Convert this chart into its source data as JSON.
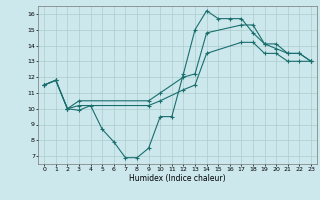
{
  "title": "",
  "xlabel": "Humidex (Indice chaleur)",
  "bg_color": "#cce8ec",
  "grid_color": "#aacccc",
  "line_color": "#1a6e6e",
  "xlim": [
    -0.5,
    23.5
  ],
  "ylim": [
    6.5,
    16.5
  ],
  "xticks": [
    0,
    1,
    2,
    3,
    4,
    5,
    6,
    7,
    8,
    9,
    10,
    11,
    12,
    13,
    14,
    15,
    16,
    17,
    18,
    19,
    20,
    21,
    22,
    23
  ],
  "yticks": [
    7,
    8,
    9,
    10,
    11,
    12,
    13,
    14,
    15,
    16
  ],
  "series1_x": [
    0,
    1,
    2,
    3,
    4,
    5,
    6,
    7,
    8,
    9,
    10,
    11,
    12,
    13,
    14,
    15,
    16,
    17,
    18,
    19,
    20,
    21,
    22,
    23
  ],
  "series1_y": [
    11.5,
    11.8,
    10.0,
    9.9,
    10.2,
    8.7,
    7.9,
    6.9,
    6.9,
    7.5,
    9.5,
    9.5,
    12.2,
    15.0,
    16.2,
    15.7,
    15.7,
    15.7,
    14.8,
    14.1,
    13.8,
    13.5,
    13.5,
    13.0
  ],
  "series2_x": [
    0,
    1,
    2,
    3,
    9,
    10,
    12,
    13,
    14,
    17,
    18,
    19,
    20,
    21,
    22,
    23
  ],
  "series2_y": [
    11.5,
    11.8,
    10.0,
    10.5,
    10.5,
    11.0,
    12.0,
    12.2,
    14.8,
    15.3,
    15.3,
    14.1,
    14.1,
    13.5,
    13.5,
    13.0
  ],
  "series3_x": [
    0,
    1,
    2,
    3,
    9,
    10,
    12,
    13,
    14,
    17,
    18,
    19,
    20,
    21,
    22,
    23
  ],
  "series3_y": [
    11.5,
    11.8,
    10.0,
    10.2,
    10.2,
    10.5,
    11.2,
    11.5,
    13.5,
    14.2,
    14.2,
    13.5,
    13.5,
    13.0,
    13.0,
    13.0
  ]
}
